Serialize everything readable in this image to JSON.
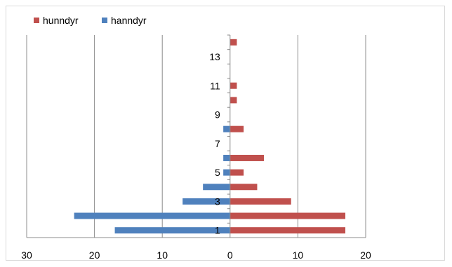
{
  "chart_data": {
    "type": "bar",
    "orientation": "horizontal",
    "layout": "population-pyramid",
    "categories": [
      "1",
      "2",
      "3",
      "4",
      "5",
      "6",
      "7",
      "8",
      "9",
      "10",
      "11",
      "12",
      "13",
      "14"
    ],
    "category_tick_labels": [
      "1",
      "3",
      "5",
      "7",
      "9",
      "11",
      "13"
    ],
    "series": [
      {
        "name": "hunndyr",
        "color": "#c0504d",
        "values": [
          17,
          17,
          9,
          4,
          2,
          5,
          0,
          2,
          0,
          1,
          1,
          0,
          0,
          1
        ]
      },
      {
        "name": "hanndyr",
        "color": "#4f81bd",
        "values": [
          17,
          23,
          7,
          4,
          1,
          1,
          0,
          1,
          0,
          0,
          0,
          0,
          0,
          0
        ]
      }
    ],
    "xlim": [
      -30,
      20
    ],
    "x_ticks": [
      -30,
      -20,
      -10,
      0,
      10,
      20
    ],
    "x_tick_labels": [
      "30",
      "20",
      "10",
      "0",
      "10",
      "20"
    ],
    "legend_position": "top-left",
    "grid": "vertical"
  }
}
